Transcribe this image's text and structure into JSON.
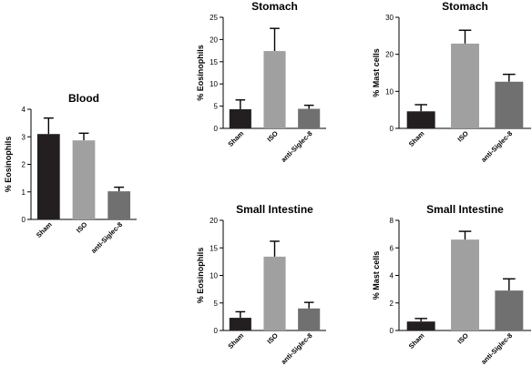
{
  "chart_data": [
    {
      "type": "bar",
      "title": "Blood",
      "ylabel": "% Eosinophils",
      "categories": [
        "Sham",
        "ISO",
        "anti-Siglec-8"
      ],
      "values": [
        3.1,
        2.87,
        1.02
      ],
      "errors": [
        0.58,
        0.26,
        0.15
      ],
      "ylim": [
        0,
        4
      ],
      "yticks": [
        "0",
        "1",
        "2",
        "3",
        "4"
      ],
      "colors": [
        "#231f20",
        "#a0a0a0",
        "#707070"
      ]
    },
    {
      "type": "bar",
      "title": "Stomach",
      "ylabel": "% Eosinophils",
      "categories": [
        "Sham",
        "ISO",
        "anti-Siglec-8"
      ],
      "values": [
        4.3,
        17.4,
        4.4
      ],
      "errors": [
        2.1,
        5.1,
        0.8
      ],
      "ylim": [
        0,
        25
      ],
      "yticks": [
        "0",
        "5",
        "10",
        "15",
        "20",
        "25"
      ],
      "colors": [
        "#231f20",
        "#a0a0a0",
        "#707070"
      ]
    },
    {
      "type": "bar",
      "title": "Stomach",
      "ylabel": "% Mast cells",
      "categories": [
        "Sham",
        "ISO",
        "anti-Siglec-8"
      ],
      "values": [
        4.6,
        22.9,
        12.6
      ],
      "errors": [
        1.8,
        3.6,
        2.0
      ],
      "ylim": [
        0,
        30
      ],
      "yticks": [
        "0",
        "10",
        "20",
        "30"
      ],
      "colors": [
        "#231f20",
        "#a0a0a0",
        "#707070"
      ]
    },
    {
      "type": "bar",
      "title": "Small Intestine",
      "ylabel": "% Eosinophils",
      "categories": [
        "Sham",
        "ISO",
        "anti-Siglec-8"
      ],
      "values": [
        2.3,
        13.4,
        4.0
      ],
      "errors": [
        1.1,
        2.8,
        1.1
      ],
      "ylim": [
        0,
        20
      ],
      "yticks": [
        "0",
        "5",
        "10",
        "15",
        "20"
      ],
      "colors": [
        "#231f20",
        "#a0a0a0",
        "#707070"
      ]
    },
    {
      "type": "bar",
      "title": "Small Intestine",
      "ylabel": "% Mast cells",
      "categories": [
        "Sham",
        "ISO",
        "anti-Siglec-8"
      ],
      "values": [
        0.65,
        6.6,
        2.9
      ],
      "errors": [
        0.22,
        0.6,
        0.85
      ],
      "ylim": [
        0,
        8
      ],
      "yticks": [
        "0",
        "2",
        "4",
        "6",
        "8"
      ],
      "colors": [
        "#231f20",
        "#a0a0a0",
        "#707070"
      ]
    }
  ]
}
